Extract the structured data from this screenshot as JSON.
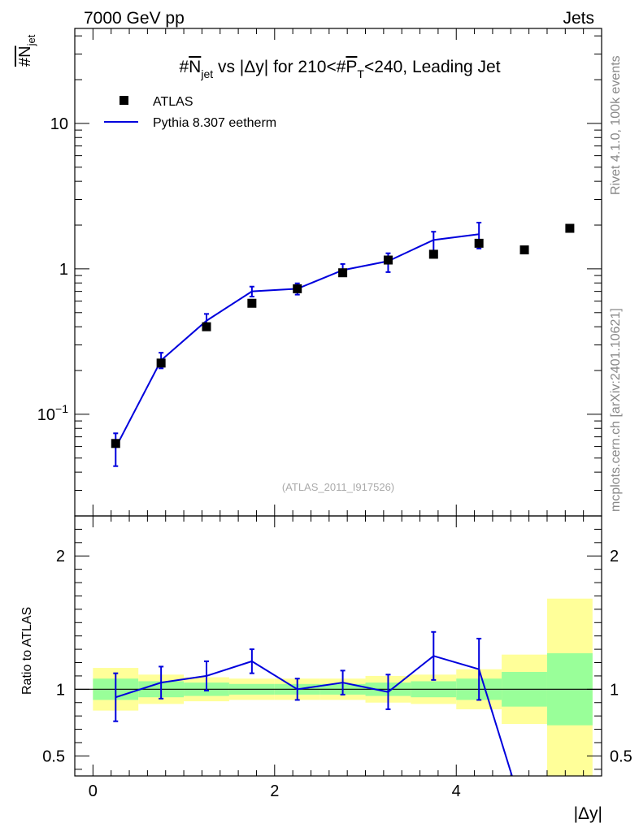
{
  "header": {
    "left": "7000 GeV pp",
    "right": "Jets",
    "side_top": "Rivet 4.1.0,  100k events",
    "side_bottom": "mcplots.cern.ch [arXiv:2401.10621]",
    "watermark": "(ATLAS_2011_I917526)"
  },
  "chart_data": {
    "type": "line",
    "title": "#N_jet vs |Δy| for 210<#P_T<240, Leading Jet",
    "title_parts": {
      "a": "#",
      "b": "N",
      "b_sub": "jet",
      "c": " vs |Δy| for 210<#",
      "d": "P",
      "d_sub": "T",
      "e": "<240, Leading Jet"
    },
    "ylabel": {
      "main": "#N",
      "sub": "jet"
    },
    "xlabel": "|Δy|",
    "ratio_ylabel": "Ratio to ATLAS",
    "xlim": [
      -0.2,
      5.6
    ],
    "ylim": [
      0.02,
      45
    ],
    "yscale": "log",
    "ratio_ylim": [
      0.35,
      2.3
    ],
    "x_ticks": [
      0,
      2,
      4
    ],
    "x_tick_labels": [
      "0",
      "2",
      "4"
    ],
    "y_ticks_main": [
      {
        "value": 0.1,
        "base": "10",
        "exp": "−1"
      },
      {
        "value": 1,
        "base": "1",
        "exp": ""
      },
      {
        "value": 10,
        "base": "10",
        "exp": ""
      }
    ],
    "ratio_ticks": [
      {
        "value": 0.5,
        "label": "0.5"
      },
      {
        "value": 1,
        "label": "1"
      },
      {
        "value": 2,
        "label": "2"
      }
    ],
    "legend": [
      {
        "name": "ATLAS",
        "marker": "square"
      },
      {
        "name": "Pythia 8.307 eetherm",
        "marker": "line"
      }
    ],
    "data": {
      "name": "ATLAS",
      "bins": [
        [
          0,
          0.5
        ],
        [
          0.5,
          1
        ],
        [
          1,
          1.5
        ],
        [
          1.5,
          2
        ],
        [
          2,
          2.5
        ],
        [
          2.5,
          3
        ],
        [
          3,
          3.5
        ],
        [
          3.5,
          4
        ],
        [
          4,
          4.5
        ],
        [
          4.5,
          5
        ],
        [
          5,
          5.5
        ]
      ],
      "x": [
        0.25,
        0.75,
        1.25,
        1.75,
        2.25,
        2.75,
        3.25,
        3.75,
        4.25,
        4.75,
        5.25
      ],
      "y": [
        0.063,
        0.225,
        0.4,
        0.58,
        0.73,
        0.94,
        1.15,
        1.26,
        1.5,
        1.35,
        1.9
      ],
      "band_inner": [
        0.08,
        0.06,
        0.05,
        0.04,
        0.04,
        0.04,
        0.05,
        0.06,
        0.08,
        0.13,
        0.27
      ],
      "band_outer": [
        0.16,
        0.11,
        0.09,
        0.08,
        0.08,
        0.08,
        0.1,
        0.11,
        0.15,
        0.26,
        0.68
      ]
    },
    "mc": {
      "name": "Pythia 8.307 eetherm",
      "color": "#0000dd",
      "x": [
        0.25,
        0.75,
        1.25,
        1.75,
        2.25,
        2.75,
        3.25,
        3.75,
        4.25
      ],
      "y": [
        0.059,
        0.235,
        0.44,
        0.7,
        0.73,
        0.98,
        1.13,
        1.58,
        1.73
      ],
      "err_lo": [
        0.015,
        0.028,
        0.045,
        0.055,
        0.065,
        0.08,
        0.18,
        0.28,
        0.35
      ],
      "err_hi": [
        0.015,
        0.03,
        0.05,
        0.055,
        0.065,
        0.1,
        0.15,
        0.22,
        0.35
      ],
      "ratio": [
        0.94,
        1.05,
        1.1,
        1.21,
        1.0,
        1.05,
        0.98,
        1.25,
        1.15
      ],
      "ratio_err": [
        0.18,
        0.12,
        0.11,
        0.09,
        0.08,
        0.09,
        0.13,
        0.18,
        0.23
      ],
      "ratio_tail": {
        "x": 4.75,
        "y": 0.05
      }
    },
    "colors": {
      "green": "#99ff99",
      "yellow": "#ffff99",
      "mc": "#0000dd",
      "data": "#000000"
    }
  }
}
